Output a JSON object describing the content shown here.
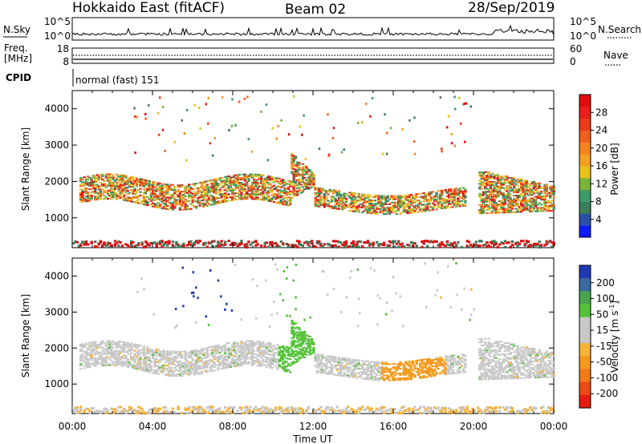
{
  "header": {
    "radar": "Hokkaido East (fitACF)",
    "beam": "Beam 02",
    "date": "28/Sep/2019"
  },
  "noise_panel": {
    "left_label": "N.Sky",
    "right_label": "N.Search",
    "left_ticks": [
      "10^5",
      "10^0"
    ],
    "right_ticks": [
      "10^5",
      "10^0"
    ]
  },
  "freq_panel": {
    "left_label_1": "Freq.",
    "left_label_2": "[MHz]",
    "left_ticks": [
      "18",
      "8"
    ],
    "right_label": "Nave",
    "right_ticks": [
      "60",
      "0"
    ]
  },
  "cpid_panel": {
    "label": "CPID",
    "text": "normal (fast) 151"
  },
  "icons": {
    "nsearch_legend": "dotted-line-icon",
    "nave_legend": "dotted-line-icon"
  },
  "chart_data": [
    {
      "type": "heatmap",
      "title": "",
      "xlabel": "Time UT",
      "ylabel": "Slant Range [km]",
      "xlim": [
        0,
        24
      ],
      "ylim": [
        180,
        4500
      ],
      "x_ticks": [
        "00:00",
        "04:00",
        "08:00",
        "12:00",
        "16:00",
        "20:00",
        "00:00"
      ],
      "y_ticks": [
        1000,
        2000,
        3000,
        4000
      ],
      "colorbar": {
        "label": "Power [dB]",
        "ticks": [
          "4",
          "8",
          "12",
          "16",
          "20",
          "24",
          "28"
        ],
        "colors": [
          "#0b1cff",
          "#2c4fa6",
          "#3d7e5a",
          "#3f9a6b",
          "#7ab43a",
          "#e6c21a",
          "#f2a01f",
          "#f58420",
          "#f06020",
          "#eb3a1c",
          "#e81f1c",
          "#e00d10"
        ]
      },
      "features": [
        {
          "name": "band",
          "t_start": 0.3,
          "t_end": 11.0,
          "range_km": [
            1300,
            2200
          ],
          "value": "mixed"
        },
        {
          "name": "band",
          "t_start": 12.0,
          "t_end": 19.5,
          "range_km": [
            1200,
            1700
          ],
          "value": "mixed"
        },
        {
          "name": "band",
          "t_start": 20.0,
          "t_end": 24.0,
          "range_km": [
            1100,
            2400
          ],
          "value": "mixed"
        }
      ]
    },
    {
      "type": "heatmap",
      "title": "",
      "xlabel": "Time UT",
      "ylabel": "Slant Range [km]",
      "xlim": [
        0,
        24
      ],
      "ylim": [
        180,
        4500
      ],
      "x_ticks": [
        "00:00",
        "04:00",
        "08:00",
        "12:00",
        "16:00",
        "20:00",
        "00:00"
      ],
      "y_ticks": [
        1000,
        2000,
        3000,
        4000
      ],
      "colorbar": {
        "label_main": "Velocity",
        "label_unit": "[m s",
        "label_sup": "-1",
        "label_close": "]",
        "ticks": [
          "200",
          "100",
          "50",
          "15",
          "-15",
          "-50",
          "-100",
          "-200"
        ],
        "colors": [
          "#1f3bb3",
          "#3a6a9c",
          "#4aa54a",
          "#55c23a",
          "#c8c8c8",
          "#c8c8c8",
          "#f4b43a",
          "#f39a1c",
          "#f27a18",
          "#ee4a16",
          "#e41d12"
        ]
      }
    }
  ]
}
